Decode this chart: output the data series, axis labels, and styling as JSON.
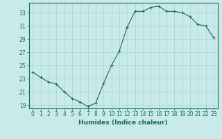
{
  "x": [
    0,
    1,
    2,
    3,
    4,
    5,
    6,
    7,
    8,
    9,
    10,
    11,
    12,
    13,
    14,
    15,
    16,
    17,
    18,
    19,
    20,
    21,
    22,
    23
  ],
  "y": [
    24.0,
    23.2,
    22.5,
    22.2,
    21.0,
    20.0,
    19.5,
    18.8,
    19.3,
    22.3,
    25.0,
    27.2,
    30.8,
    33.2,
    33.2,
    33.8,
    34.0,
    33.2,
    33.2,
    33.0,
    32.4,
    31.2,
    31.0,
    29.2
  ],
  "line_color": "#1a6b5a",
  "marker": "+",
  "bg_color": "#c8eae8",
  "grid_color": "#a8d4d0",
  "xlabel": "Humidex (Indice chaleur)",
  "xlim": [
    -0.5,
    23.5
  ],
  "ylim": [
    18.5,
    34.5
  ],
  "yticks": [
    19,
    21,
    23,
    25,
    27,
    29,
    31,
    33
  ],
  "xticks": [
    0,
    1,
    2,
    3,
    4,
    5,
    6,
    7,
    8,
    9,
    10,
    11,
    12,
    13,
    14,
    15,
    16,
    17,
    18,
    19,
    20,
    21,
    22,
    23
  ],
  "tick_fontsize": 5.5,
  "xlabel_fontsize": 6.5
}
